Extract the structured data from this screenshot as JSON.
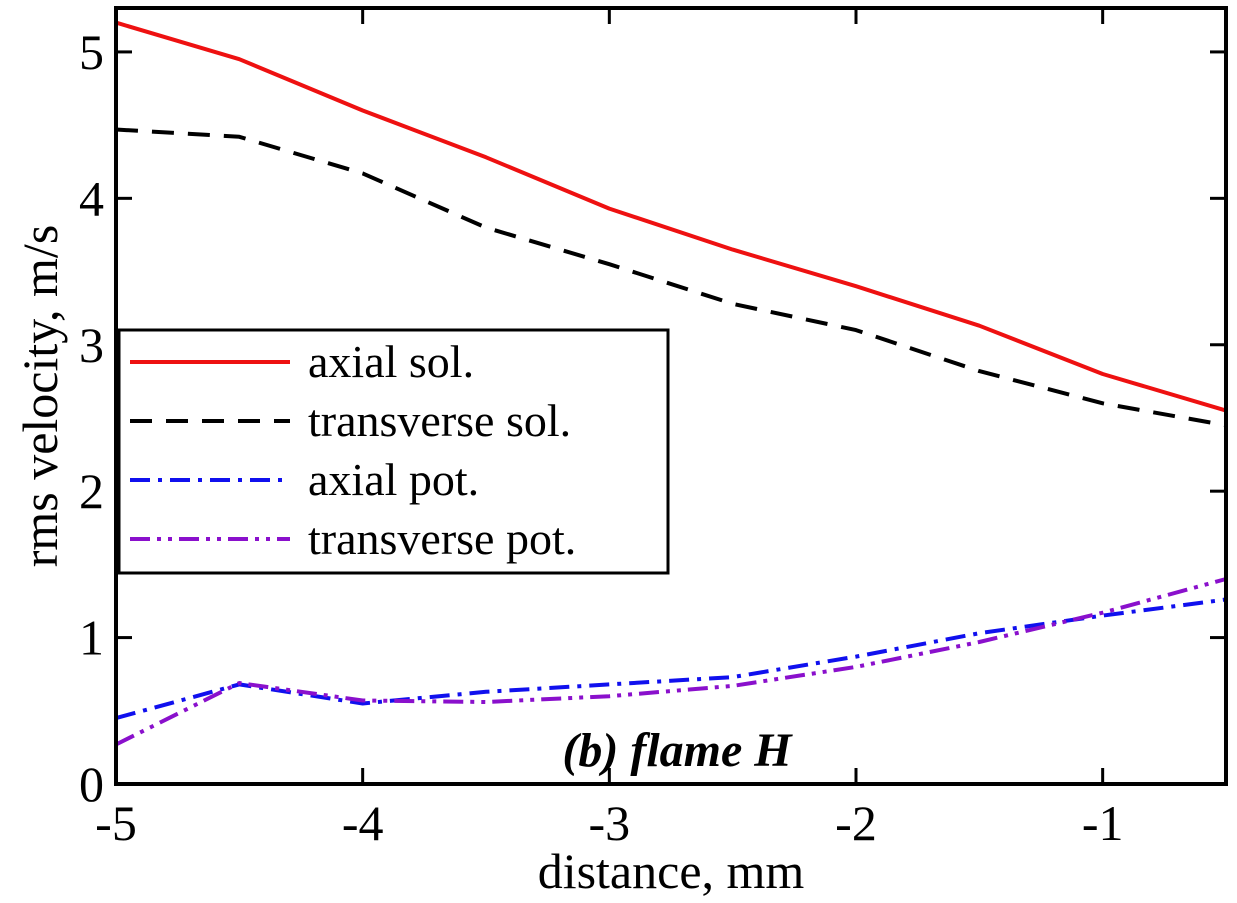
{
  "chart_data": {
    "type": "line",
    "xlabel": "distance, mm",
    "ylabel": "rms velocity, m/s",
    "xlim": [
      -5,
      -0.5
    ],
    "ylim": [
      0,
      5.3
    ],
    "x_ticks": [
      -5,
      -4,
      -3,
      -2,
      -1
    ],
    "x_tick_labels": [
      "-5",
      "-4",
      "-3",
      "-2",
      "-1"
    ],
    "y_ticks": [
      0,
      1,
      2,
      3,
      4,
      5
    ],
    "y_tick_labels": [
      "0",
      "1",
      "2",
      "3",
      "4",
      "5"
    ],
    "annotation": "(b) flame H",
    "legend_position": "center-left",
    "grid": false,
    "series": [
      {
        "name": "axial sol.",
        "color": "#ee1111",
        "dash": "solid",
        "x": [
          -5,
          -4.5,
          -4,
          -3.5,
          -3,
          -2.5,
          -2,
          -1.5,
          -1,
          -0.5
        ],
        "y": [
          5.2,
          4.95,
          4.6,
          4.28,
          3.93,
          3.65,
          3.4,
          3.13,
          2.8,
          2.55
        ]
      },
      {
        "name": "transverse sol.",
        "color": "#000000",
        "dash": "dash",
        "x": [
          -5,
          -4.5,
          -4,
          -3.5,
          -3,
          -2.5,
          -2,
          -1.5,
          -1,
          -0.5
        ],
        "y": [
          4.47,
          4.42,
          4.17,
          3.8,
          3.55,
          3.28,
          3.1,
          2.82,
          2.6,
          2.45
        ]
      },
      {
        "name": "axial pot.",
        "color": "#1010ee",
        "dash": "dashdot",
        "x": [
          -5,
          -4.5,
          -4,
          -3.5,
          -3,
          -2.5,
          -2,
          -1.5,
          -1,
          -0.5
        ],
        "y": [
          0.45,
          0.68,
          0.55,
          0.63,
          0.68,
          0.73,
          0.87,
          1.03,
          1.15,
          1.26
        ]
      },
      {
        "name": "transverse pot.",
        "color": "#8a10cc",
        "dash": "dashdotdot",
        "x": [
          -5,
          -4.5,
          -4,
          -3.5,
          -3,
          -2.5,
          -2,
          -1.5,
          -1,
          -0.5
        ],
        "y": [
          0.27,
          0.69,
          0.57,
          0.56,
          0.6,
          0.67,
          0.8,
          0.97,
          1.17,
          1.4
        ]
      }
    ]
  }
}
